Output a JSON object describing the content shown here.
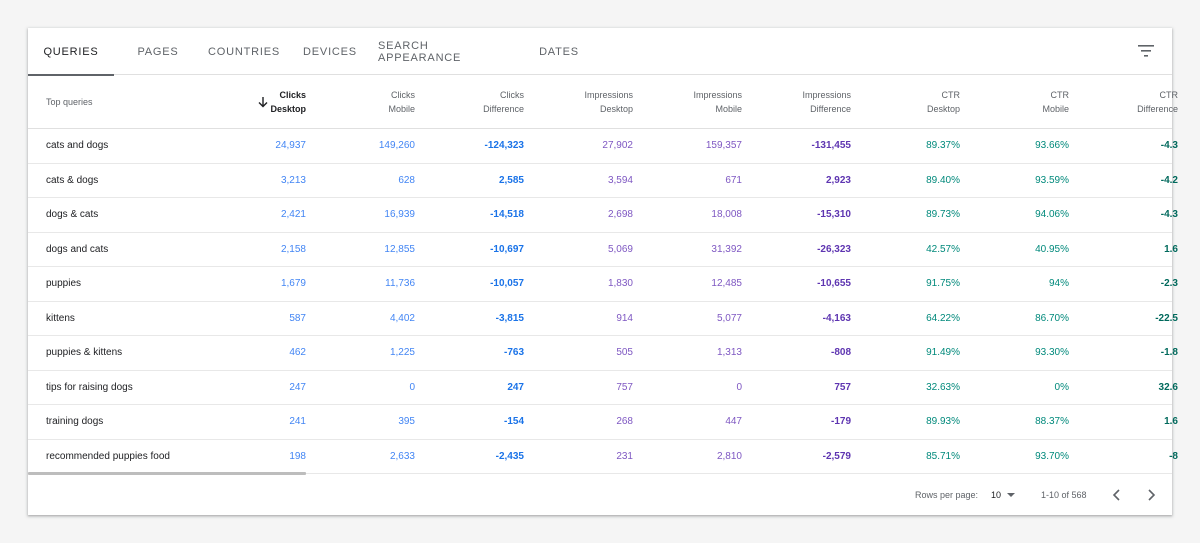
{
  "tabs": [
    {
      "label": "QUERIES",
      "active": true
    },
    {
      "label": "PAGES",
      "active": false
    },
    {
      "label": "COUNTRIES",
      "active": false
    },
    {
      "label": "DEVICES",
      "active": false
    },
    {
      "label": "SEARCH APPEARANCE",
      "active": false
    },
    {
      "label": "DATES",
      "active": false
    }
  ],
  "filter_icon": "filter-list-icon",
  "table": {
    "columns": [
      {
        "line1": "Top queries",
        "line2": ""
      },
      {
        "line1": "Clicks",
        "line2": "Desktop"
      },
      {
        "line1": "Clicks",
        "line2": "Mobile"
      },
      {
        "line1": "Clicks",
        "line2": "Difference"
      },
      {
        "line1": "Impressions",
        "line2": "Desktop"
      },
      {
        "line1": "Impressions",
        "line2": "Mobile"
      },
      {
        "line1": "Impressions",
        "line2": "Difference"
      },
      {
        "line1": "CTR",
        "line2": "Desktop"
      },
      {
        "line1": "CTR",
        "line2": "Mobile"
      },
      {
        "line1": "CTR",
        "line2": "Difference"
      }
    ],
    "sort_icon": "arrow-downward-icon",
    "rows": [
      [
        "cats and dogs",
        "24,937",
        "149,260",
        "-124,323",
        "27,902",
        "159,357",
        "-131,455",
        "89.37%",
        "93.66%",
        "-4.3"
      ],
      [
        "cats & dogs",
        "3,213",
        "628",
        "2,585",
        "3,594",
        "671",
        "2,923",
        "89.40%",
        "93.59%",
        "-4.2"
      ],
      [
        "dogs & cats",
        "2,421",
        "16,939",
        "-14,518",
        "2,698",
        "18,008",
        "-15,310",
        "89.73%",
        "94.06%",
        "-4.3"
      ],
      [
        "dogs and cats",
        "2,158",
        "12,855",
        "-10,697",
        "5,069",
        "31,392",
        "-26,323",
        "42.57%",
        "40.95%",
        "1.6"
      ],
      [
        "puppies",
        "1,679",
        "11,736",
        "-10,057",
        "1,830",
        "12,485",
        "-10,655",
        "91.75%",
        "94%",
        "-2.3"
      ],
      [
        "kittens",
        "587",
        "4,402",
        "-3,815",
        "914",
        "5,077",
        "-4,163",
        "64.22%",
        "86.70%",
        "-22.5"
      ],
      [
        "puppies & kittens",
        "462",
        "1,225",
        "-763",
        "505",
        "1,313",
        "-808",
        "91.49%",
        "93.30%",
        "-1.8"
      ],
      [
        "tips for raising dogs",
        "247",
        "0",
        "247",
        "757",
        "0",
        "757",
        "32.63%",
        "0%",
        "32.6"
      ],
      [
        "training dogs",
        "241",
        "395",
        "-154",
        "268",
        "447",
        "-179",
        "89.93%",
        "88.37%",
        "1.6"
      ],
      [
        "recommended puppies food",
        "198",
        "2,633",
        "-2,435",
        "231",
        "2,810",
        "-2,579",
        "85.71%",
        "93.70%",
        "-8"
      ]
    ]
  },
  "footer": {
    "rows_per_page_label": "Rows per page:",
    "rows_per_page_value": "10",
    "range_text": "1-10 of 568",
    "prev_icon": "chevron-left-icon",
    "next_icon": "chevron-right-icon"
  },
  "colors": {
    "clicks": "#4285f4",
    "impressions": "#7e57c2",
    "ctr": "#00897b"
  }
}
